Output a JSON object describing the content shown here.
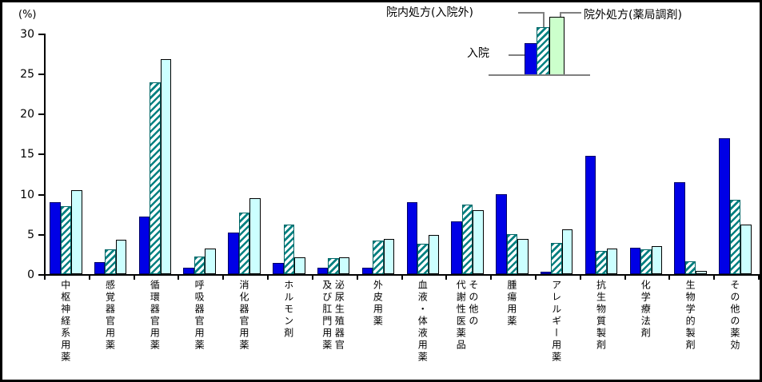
{
  "chart_data": {
    "type": "bar",
    "title": "",
    "unit_label": "(%)",
    "ylabel": "(%)",
    "xlabel": "",
    "ylim": [
      0,
      30
    ],
    "yticks": [
      0,
      5,
      10,
      15,
      20,
      25,
      30
    ],
    "grid": false,
    "legend_position": "top-right-pictogram",
    "categories": [
      "中枢神経系用薬",
      "感覚器官用薬",
      "循環器官用薬",
      "呼吸器官用薬",
      "消化器官用薬",
      "ホルモン剤",
      "泌尿生殖器官及び肛門用薬",
      "外皮用薬",
      "血液・体液用薬",
      "その他の代謝性医薬品",
      "腫瘍用薬",
      "アレルギー用薬",
      "抗生物質製剤",
      "化学療法剤",
      "生物学的製剤",
      "その他の薬効"
    ],
    "category_display": [
      "中枢神経系用薬",
      "感覚器官用薬",
      "循環器官用薬",
      "呼吸器官用薬",
      "消化器官用薬",
      "ホルモン剤",
      "泌尿生殖器官\n及び肛門用薬",
      "外皮用薬",
      "血液・体液用薬",
      "その他の\n代謝性医薬品",
      "腫瘍用薬",
      "アレルギー用薬",
      "抗生物質製剤",
      "化学療法剤",
      "生物学的製剤",
      "その他の薬効"
    ],
    "series": [
      {
        "name": "入院",
        "swatch": "solid-blue",
        "color": "#0000e6",
        "values": [
          9.0,
          1.5,
          7.2,
          0.8,
          5.2,
          1.4,
          0.8,
          0.8,
          9.0,
          6.6,
          10.0,
          0.3,
          14.7,
          3.3,
          11.4,
          16.9
        ]
      },
      {
        "name": "院内処方(入院外)",
        "swatch": "teal-hatch",
        "color": "#008080",
        "values": [
          8.5,
          3.1,
          23.9,
          2.2,
          7.7,
          6.2,
          2.0,
          4.2,
          3.8,
          8.7,
          5.0,
          3.9,
          2.9,
          3.1,
          1.6,
          9.3
        ]
      },
      {
        "name": "院外処方(薬局調剤)",
        "swatch": "pale-cyan",
        "color": "#ccffff",
        "legend_swatch_color": "#ccffcc",
        "values": [
          10.4,
          4.3,
          26.8,
          3.2,
          9.5,
          2.1,
          2.1,
          4.4,
          4.9,
          8.0,
          4.4,
          5.6,
          3.2,
          3.5,
          0.4,
          6.2
        ]
      }
    ]
  },
  "legend": {
    "inpatient_label": "入院",
    "in_hospital_label": "院内処方(入院外)",
    "out_of_hospital_label": "院外処方(薬局調剤)"
  },
  "colors": {
    "bar_blue": "#0000e6",
    "hatch_teal": "#008080",
    "bar_pale_cyan": "#ccffff",
    "legend_pale_green": "#ccffcc",
    "connector_gray": "#808080",
    "axis_black": "#000000"
  }
}
